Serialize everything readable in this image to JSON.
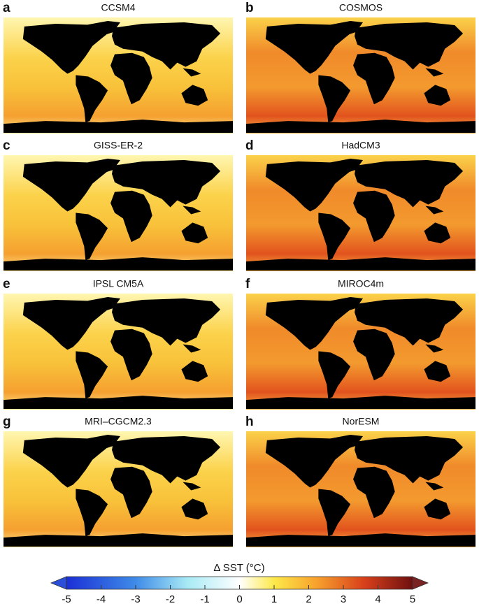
{
  "panels": [
    {
      "letter": "a",
      "title": "CCSM4"
    },
    {
      "letter": "b",
      "title": "COSMOS"
    },
    {
      "letter": "c",
      "title": "GISS-ER-2"
    },
    {
      "letter": "d",
      "title": "HadCM3"
    },
    {
      "letter": "e",
      "title": "IPSL CM5A"
    },
    {
      "letter": "f",
      "title": "MIROC4m"
    },
    {
      "letter": "g",
      "title": "MRI–CGCM2.3"
    },
    {
      "letter": "h",
      "title": "NorESM"
    }
  ],
  "colorbar": {
    "label": "Δ SST (°C)",
    "lim": [
      -5,
      5
    ],
    "ticks": [
      -5,
      -4,
      -3,
      -2,
      -1,
      0,
      1,
      2,
      3,
      4,
      5
    ]
  }
}
